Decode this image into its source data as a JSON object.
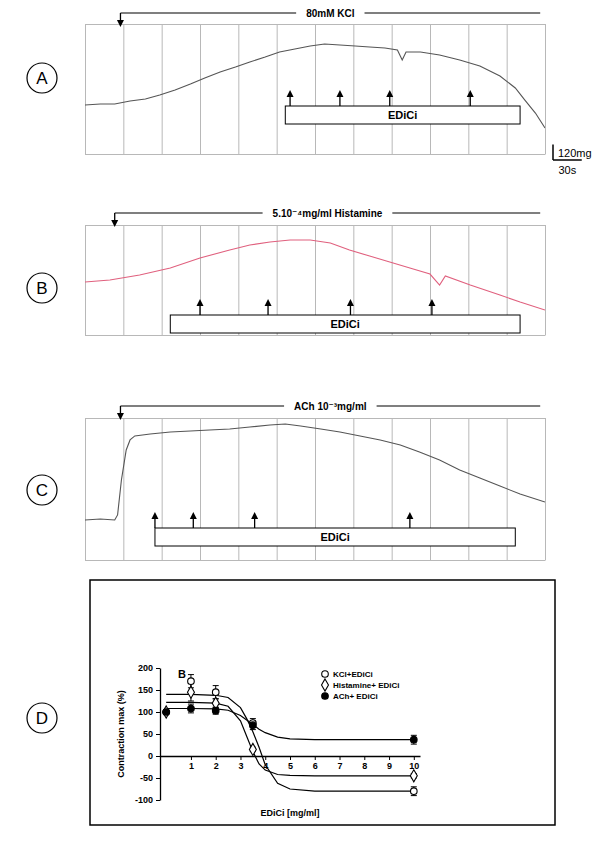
{
  "chart_data": [
    {
      "type": "line",
      "panel_label": "A",
      "title": "80mM KCl",
      "agonist": {
        "start": 37,
        "end": 475
      },
      "treatment": {
        "label": "EDiCi",
        "start": 209,
        "end": 454,
        "additions": [
          214,
          266,
          318,
          402
        ]
      },
      "x": [
        0,
        16,
        31,
        47,
        63,
        78,
        94,
        110,
        125,
        141,
        157,
        172,
        188,
        203,
        219,
        235,
        250,
        266,
        282,
        297,
        313,
        326,
        331,
        335,
        350,
        370,
        391,
        412,
        433,
        449,
        459,
        470,
        480
      ],
      "values": [
        377,
        385,
        385,
        408,
        423,
        454,
        492,
        538,
        585,
        631,
        669,
        708,
        746,
        785,
        808,
        831,
        846,
        838,
        831,
        823,
        815,
        800,
        723,
        785,
        785,
        762,
        723,
        677,
        600,
        508,
        415,
        315,
        200
      ],
      "color": "#555555",
      "xlim": [
        0,
        480
      ],
      "ylim": [
        0,
        1000
      ],
      "xticks": [
        0,
        40,
        80,
        120,
        160,
        200,
        240,
        280,
        320,
        360,
        400,
        440,
        480
      ],
      "yticks": [
        0,
        1000
      ],
      "grid": true,
      "tick_labels": false,
      "scale_bar": {
        "y": {
          "value": 120,
          "label": "120mg"
        },
        "x": {
          "value": 30,
          "label": "30s"
        }
      }
    },
    {
      "type": "line",
      "panel_label": "B",
      "title": "5.10⁻⁴mg/ml Histamine",
      "agonist": {
        "start": 31,
        "end": 475
      },
      "treatment": {
        "label": "EDiCi",
        "start": 89,
        "end": 454,
        "additions": [
          120,
          191,
          277,
          362
        ]
      },
      "x": [
        0,
        26,
        57,
        89,
        120,
        151,
        172,
        193,
        214,
        235,
        256,
        276,
        297,
        318,
        339,
        360,
        370,
        376,
        402,
        433,
        454,
        480
      ],
      "values": [
        410,
        425,
        464,
        518,
        595,
        657,
        695,
        719,
        734,
        734,
        711,
        657,
        610,
        564,
        518,
        471,
        386,
        456,
        386,
        309,
        255,
        193
      ],
      "color": "#e0607e",
      "xlim": [
        0,
        480
      ],
      "ylim": [
        0,
        850
      ],
      "xticks": [
        0,
        40,
        80,
        120,
        160,
        200,
        240,
        280,
        320,
        360,
        400,
        440,
        480
      ],
      "yticks": [
        0,
        850
      ],
      "grid": true,
      "tick_labels": false
    },
    {
      "type": "line",
      "panel_label": "C",
      "title": "ACh 10⁻³mg/ml",
      "agonist": {
        "start": 37,
        "end": 475
      },
      "treatment": {
        "label": "EDiCi",
        "start": 73,
        "end": 449,
        "additions": [
          73,
          113,
          177,
          339
        ]
      },
      "x": [
        0,
        16,
        31,
        34,
        38,
        43,
        47,
        52,
        68,
        89,
        110,
        130,
        151,
        172,
        193,
        209,
        225,
        246,
        266,
        287,
        308,
        329,
        349,
        370,
        391,
        412,
        433,
        454,
        480
      ],
      "values": [
        310,
        318,
        310,
        349,
        620,
        852,
        930,
        961,
        976,
        992,
        999,
        1007,
        1015,
        1030,
        1046,
        1053,
        1038,
        1015,
        992,
        961,
        930,
        891,
        837,
        775,
        697,
        635,
        573,
        511,
        449
      ],
      "color": "#555555",
      "xlim": [
        0,
        480
      ],
      "ylim": [
        0,
        1100
      ],
      "xticks": [
        0,
        40,
        80,
        120,
        160,
        200,
        240,
        280,
        320,
        360,
        400,
        440,
        480
      ],
      "yticks": [
        0,
        1100
      ],
      "grid": true,
      "tick_labels": false
    },
    {
      "type": "scatter",
      "panel_label": "D",
      "title": "B",
      "x_label": "EDiCi [mg/ml]",
      "y_label": "Contraction max (%)",
      "xlim": [
        -0.25,
        10.25
      ],
      "ylim": [
        -100,
        200
      ],
      "xticks": [
        1,
        2,
        3,
        4,
        5,
        6,
        7,
        8,
        9,
        10
      ],
      "yticks": [
        -100,
        -50,
        0,
        50,
        100,
        150,
        200
      ],
      "legend": "top-right",
      "series": [
        {
          "name": "KCl+EDiCi",
          "color": "#000000",
          "marker": "open-circle",
          "x": [
            0,
            1,
            2,
            3.5,
            10
          ],
          "values": [
            100,
            170,
            145,
            75,
            -80
          ],
          "errors": [
            0,
            15,
            15,
            10,
            10
          ],
          "fit": {
            "x": [
              0,
              1,
              2,
              2.5,
              3,
              3.25,
              3.5,
              3.75,
              4,
              4.5,
              5,
              6,
              8,
              10
            ],
            "values": [
              140,
              140,
              138,
              133,
              110,
              85,
              55,
              20,
              -20,
              -62,
              -75,
              -80,
              -80,
              -80
            ]
          }
        },
        {
          "name": "Histamine+ EDiCi",
          "color": "#000000",
          "marker": "open-diamond",
          "x": [
            0,
            1,
            2,
            3.5,
            10
          ],
          "values": [
            100,
            145,
            120,
            15,
            -45
          ],
          "errors": [
            0,
            20,
            10,
            5,
            5
          ],
          "fit": {
            "x": [
              0,
              1,
              2,
              2.5,
              3,
              3.25,
              3.5,
              3.75,
              4,
              4.5,
              5,
              6,
              8,
              10
            ],
            "values": [
              122,
              122,
              120,
              113,
              80,
              45,
              10,
              -18,
              -32,
              -42,
              -44,
              -45,
              -45,
              -45
            ]
          }
        },
        {
          "name": "ACh+ EDiCi",
          "color": "#000000",
          "marker": "filled-circle",
          "x": [
            0,
            1,
            2,
            3.5,
            10
          ],
          "values": [
            100,
            108,
            103,
            70,
            37
          ],
          "errors": [
            0,
            10,
            8,
            10,
            10
          ],
          "fit": {
            "x": [
              0,
              1,
              2,
              2.5,
              3,
              3.25,
              3.5,
              3.75,
              4,
              4.5,
              5,
              6,
              8,
              10
            ],
            "values": [
              108,
              108,
              107,
              104,
              92,
              82,
              72,
              61,
              53,
              43,
              39,
              37,
              37,
              37
            ]
          }
        }
      ]
    }
  ]
}
